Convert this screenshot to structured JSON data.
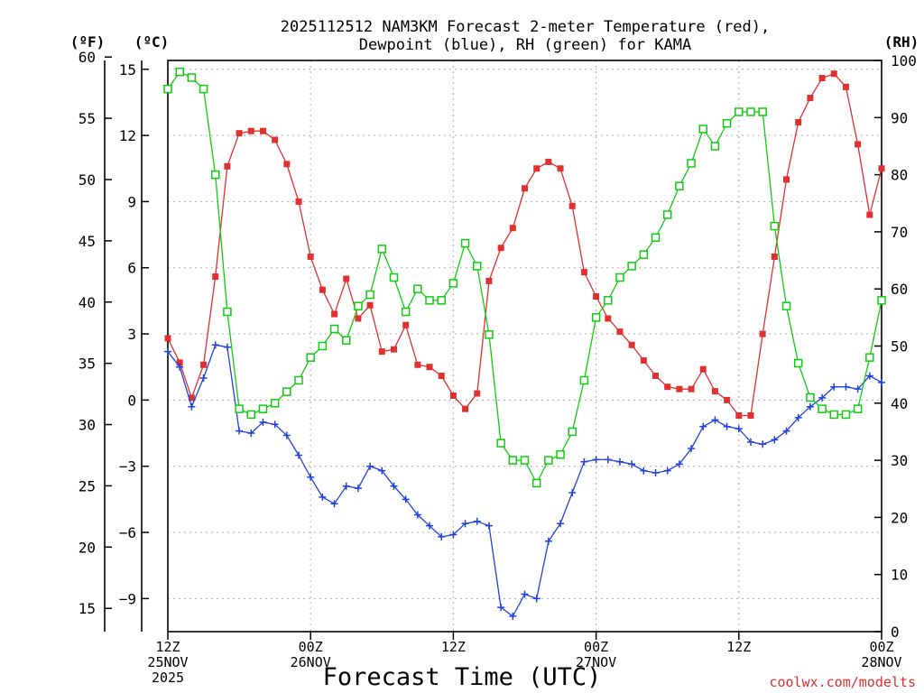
{
  "chart_data": {
    "type": "line",
    "title_line1": "2025112512 NAM3KM Forecast 2-meter Temperature (red),",
    "title_line2": "Dewpoint (blue), RH (green) for KAMA",
    "xlabel": "Forecast Time (UTC)",
    "watermark": "coolwx.com/modelts",
    "units": {
      "fahrenheit": "(ºF)",
      "celsius": "(ºC)",
      "rh": "(RH)"
    },
    "x_range_hours": [
      0,
      60
    ],
    "y_celsius_range": [
      -10.5,
      15.4
    ],
    "rh_range": [
      0,
      100
    ],
    "x_ticks": [
      {
        "hour": 0,
        "line1": "12Z",
        "line2": "25NOV",
        "line3": "2025"
      },
      {
        "hour": 12,
        "line1": "00Z",
        "line2": "26NOV",
        "line3": ""
      },
      {
        "hour": 24,
        "line1": "12Z",
        "line2": "",
        "line3": ""
      },
      {
        "hour": 36,
        "line1": "00Z",
        "line2": "27NOV",
        "line3": ""
      },
      {
        "hour": 48,
        "line1": "12Z",
        "line2": "",
        "line3": ""
      },
      {
        "hour": 60,
        "line1": "00Z",
        "line2": "28NOV",
        "line3": ""
      }
    ],
    "y_celsius_ticks": [
      "15",
      "12",
      "9",
      "6",
      "3",
      "0",
      "−3",
      "−6",
      "−9"
    ],
    "y_fahrenheit_ticks": [
      "60",
      "55",
      "50",
      "45",
      "40",
      "35",
      "30",
      "25",
      "20",
      "15"
    ],
    "y_rh_ticks": [
      "100",
      "90",
      "80",
      "70",
      "60",
      "50",
      "40",
      "30",
      "20",
      "10",
      "0"
    ],
    "hours": [
      0,
      1,
      2,
      3,
      4,
      5,
      6,
      7,
      8,
      9,
      10,
      11,
      12,
      13,
      14,
      15,
      16,
      17,
      18,
      19,
      20,
      21,
      22,
      23,
      24,
      25,
      26,
      27,
      28,
      29,
      30,
      31,
      32,
      33,
      34,
      35,
      36,
      37,
      38,
      39,
      40,
      41,
      42,
      43,
      44,
      45,
      46,
      47,
      48,
      49,
      50,
      51,
      52,
      53,
      54,
      55,
      56,
      57,
      58,
      59,
      60
    ],
    "series": [
      {
        "name": "Temperature (°C)",
        "color": "#e03030",
        "marker": "filled-square",
        "values": [
          2.8,
          1.7,
          0.1,
          1.6,
          5.6,
          10.6,
          12.1,
          12.2,
          12.2,
          11.8,
          10.7,
          9.0,
          6.5,
          5.0,
          3.9,
          5.5,
          3.7,
          4.3,
          2.2,
          2.3,
          3.4,
          1.6,
          1.5,
          1.1,
          0.2,
          -0.4,
          0.3,
          5.4,
          6.9,
          7.8,
          9.6,
          10.5,
          10.8,
          10.5,
          8.8,
          5.8,
          4.7,
          3.7,
          3.1,
          2.5,
          1.8,
          1.1,
          0.6,
          0.5,
          0.5,
          1.4,
          0.4,
          -0.0,
          -0.7,
          -0.7,
          3.0,
          6.5,
          10.0,
          12.6,
          13.7,
          14.6,
          14.8,
          14.2,
          11.6,
          8.4,
          10.5
        ]
      },
      {
        "name": "Dewpoint (°C)",
        "color": "#2040e0",
        "marker": "plus",
        "values": [
          2.2,
          1.5,
          -0.3,
          1.0,
          2.5,
          2.4,
          -1.4,
          -1.5,
          -1.0,
          -1.1,
          -1.6,
          -2.5,
          -3.5,
          -4.4,
          -4.7,
          -3.9,
          -4.0,
          -3.0,
          -3.2,
          -3.9,
          -4.5,
          -5.2,
          -5.7,
          -6.2,
          -6.1,
          -5.6,
          -5.5,
          -5.7,
          -9.4,
          -9.8,
          -8.8,
          -9.0,
          -6.4,
          -5.6,
          -4.2,
          -2.8,
          -2.7,
          -2.7,
          -2.8,
          -2.9,
          -3.2,
          -3.3,
          -3.2,
          -2.9,
          -2.2,
          -1.2,
          -0.9,
          -1.2,
          -1.3,
          -1.9,
          -2.0,
          -1.8,
          -1.4,
          -0.8,
          -0.3,
          0.1,
          0.6,
          0.6,
          0.5,
          1.1,
          0.8
        ]
      },
      {
        "name": "RH (%)",
        "color": "#10cc10",
        "marker": "open-square",
        "values": [
          95,
          98,
          97,
          95,
          80,
          56,
          39,
          38,
          39,
          40,
          42,
          44,
          48,
          50,
          53,
          51,
          57,
          59,
          67,
          62,
          56,
          60,
          58,
          58,
          61,
          68,
          64,
          52,
          33,
          30,
          30,
          26,
          30,
          31,
          35,
          44,
          55,
          58,
          62,
          64,
          66,
          69,
          73,
          78,
          82,
          88,
          85,
          89,
          91,
          91,
          91,
          71,
          57,
          47,
          41,
          39,
          38,
          38,
          39,
          48,
          58
        ]
      }
    ]
  }
}
